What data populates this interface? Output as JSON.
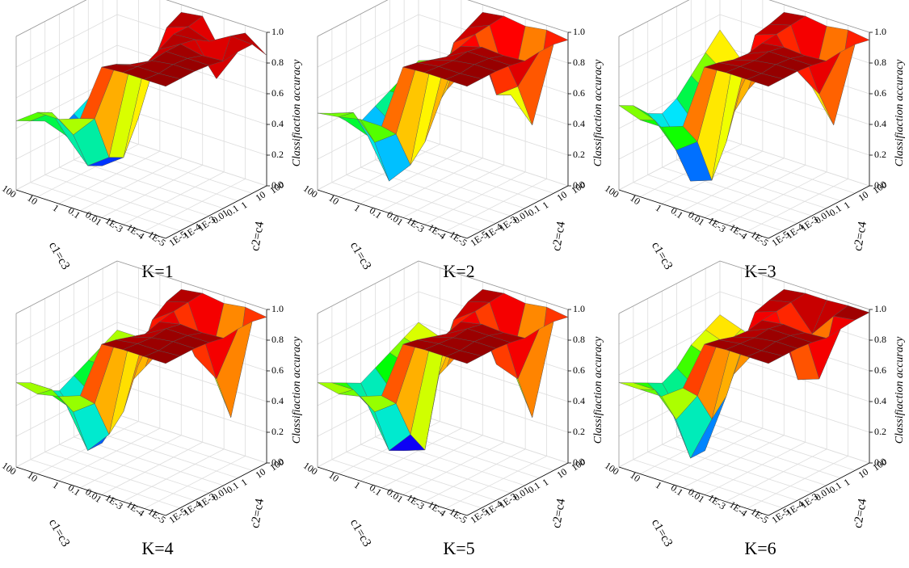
{
  "chart_data": [
    {
      "type": "surface",
      "title": "K=1",
      "xlabel": "c1=c3",
      "ylabel": "c2=c4",
      "zlabel": "Classifiaction accuracy",
      "x": [
        "100",
        "10",
        "1",
        "0.1",
        "0.01",
        "1E-3",
        "1E-4",
        "1E-5"
      ],
      "y": [
        "100",
        "10",
        "1",
        "0.1",
        "0.01",
        "1E-3",
        "1E-4",
        "1E-5"
      ],
      "zlim": [
        0,
        1
      ],
      "zticks": [
        {
          "value": 0,
          "label": "0.0"
        },
        0.2,
        0.4,
        0.6,
        0.8,
        {
          "value": 1,
          "label": "1.0"
        }
      ],
      "colormap": [
        "#6a0dad",
        "#0000ff",
        "#00e5ff",
        "#00ff00",
        "#ffff00",
        "#ff8000",
        "#ff0000",
        "#8b0000"
      ],
      "values": [
        [
          0.45,
          0.4,
          0.35,
          0.3,
          0.25,
          0.35,
          0.4,
          0.45
        ],
        [
          0.5,
          0.45,
          0.35,
          0.2,
          0.15,
          0.3,
          0.5,
          0.55
        ],
        [
          0.55,
          0.5,
          0.4,
          0.25,
          0.1,
          0.15,
          0.4,
          0.55
        ],
        [
          0.95,
          0.9,
          0.7,
          0.4,
          0.2,
          0.25,
          0.55,
          0.6
        ],
        [
          0.97,
          0.95,
          0.95,
          0.9,
          0.85,
          0.9,
          0.95,
          0.98
        ],
        [
          0.75,
          0.9,
          0.96,
          0.98,
          0.98,
          0.97,
          0.98,
          0.99
        ],
        [
          0.95,
          0.98,
          0.75,
          0.95,
          0.98,
          0.99,
          0.98,
          0.99
        ],
        [
          0.85,
          0.97,
          0.97,
          0.96,
          0.98,
          0.99,
          0.99,
          0.99
        ]
      ]
    },
    {
      "type": "surface",
      "title": "K=2",
      "xlabel": "c1=c3",
      "ylabel": "c2=c4",
      "zlabel": "Classifiaction accuracy",
      "x": [
        "100",
        "10",
        "1",
        "0.1",
        "0.01",
        "1E-3",
        "1E-4",
        "1E-5"
      ],
      "y": [
        "100",
        "10",
        "1",
        "0.1",
        "0.01",
        "1E-3",
        "1E-4",
        "1E-5"
      ],
      "zlim": [
        0,
        1
      ],
      "zticks": [
        {
          "value": 0,
          "label": "0.0"
        },
        0.2,
        0.4,
        0.6,
        0.8,
        {
          "value": 1,
          "label": "1.0"
        }
      ],
      "colormap": [
        "#6a0dad",
        "#0000ff",
        "#00e5ff",
        "#00ff00",
        "#ffff00",
        "#ff8000",
        "#ff0000",
        "#8b0000"
      ],
      "values": [
        [
          0.5,
          0.45,
          0.4,
          0.35,
          0.3,
          0.35,
          0.45,
          0.5
        ],
        [
          0.55,
          0.5,
          0.4,
          0.25,
          0.15,
          0.3,
          0.5,
          0.52
        ],
        [
          0.5,
          0.45,
          0.35,
          0.2,
          0.1,
          0.05,
          0.35,
          0.55
        ],
        [
          0.95,
          0.9,
          0.85,
          0.5,
          0.3,
          0.2,
          0.45,
          0.55
        ],
        [
          0.97,
          0.96,
          0.95,
          0.92,
          0.9,
          0.93,
          0.96,
          0.98
        ],
        [
          0.95,
          0.55,
          0.6,
          0.96,
          0.98,
          0.97,
          0.98,
          0.99
        ],
        [
          0.97,
          0.4,
          0.7,
          0.95,
          0.98,
          0.99,
          0.98,
          0.99
        ],
        [
          0.95,
          0.97,
          0.97,
          0.96,
          0.98,
          0.99,
          0.99,
          0.99
        ]
      ]
    },
    {
      "type": "surface",
      "title": "K=3",
      "xlabel": "c1=c3",
      "ylabel": "c2=c4",
      "zlabel": "Classifiaction accuracy",
      "x": [
        "100",
        "10",
        "1",
        "0.1",
        "0.01",
        "1E-3",
        "1E-4",
        "1E-5"
      ],
      "y": [
        "100",
        "10",
        "1",
        "0.1",
        "0.01",
        "1E-3",
        "1E-4",
        "1E-5"
      ],
      "zlim": [
        0,
        1
      ],
      "zticks": [
        {
          "value": 0,
          "label": "0.0"
        },
        0.2,
        0.4,
        0.6,
        0.8,
        {
          "value": 1,
          "label": "1.0"
        }
      ],
      "colormap": [
        "#6a0dad",
        "#0000ff",
        "#00e5ff",
        "#00ff00",
        "#ffff00",
        "#ff8000",
        "#ff0000",
        "#8b0000"
      ],
      "values": [
        [
          0.7,
          0.6,
          0.5,
          0.4,
          0.35,
          0.4,
          0.5,
          0.55
        ],
        [
          0.55,
          0.5,
          0.4,
          0.25,
          0.15,
          0.3,
          0.45,
          0.5
        ],
        [
          0.5,
          0.45,
          0.35,
          0.15,
          0.05,
          0.05,
          0.3,
          0.5
        ],
        [
          0.95,
          0.92,
          0.9,
          0.6,
          0.3,
          0.1,
          0.4,
          0.55
        ],
        [
          0.97,
          0.96,
          0.95,
          0.94,
          0.92,
          0.93,
          0.96,
          0.98
        ],
        [
          0.95,
          0.6,
          0.75,
          0.96,
          0.98,
          0.97,
          0.98,
          0.99
        ],
        [
          0.97,
          0.4,
          0.65,
          0.95,
          0.98,
          0.99,
          0.98,
          0.99
        ],
        [
          0.95,
          0.97,
          0.97,
          0.96,
          0.98,
          0.99,
          0.99,
          0.99
        ]
      ]
    },
    {
      "type": "surface",
      "title": "K=4",
      "xlabel": "c1=c3",
      "ylabel": "c2=c4",
      "zlabel": "Classifiaction accuracy",
      "x": [
        "100",
        "10",
        "1",
        "0.1",
        "0.01",
        "1E-3",
        "1E-4",
        "1E-5"
      ],
      "y": [
        "100",
        "10",
        "1",
        "0.1",
        "0.01",
        "1E-3",
        "1E-4",
        "1E-5"
      ],
      "zlim": [
        0,
        1
      ],
      "zticks": [
        {
          "value": 0,
          "label": "0.0"
        },
        0.2,
        0.4,
        0.6,
        0.8,
        {
          "value": 1,
          "label": "1.0"
        }
      ],
      "colormap": [
        "#6a0dad",
        "#0000ff",
        "#00e5ff",
        "#00ff00",
        "#ffff00",
        "#ff8000",
        "#ff0000",
        "#8b0000"
      ],
      "values": [
        [
          0.55,
          0.5,
          0.45,
          0.4,
          0.35,
          0.4,
          0.5,
          0.55
        ],
        [
          0.55,
          0.5,
          0.45,
          0.3,
          0.2,
          0.35,
          0.5,
          0.52
        ],
        [
          0.5,
          0.45,
          0.4,
          0.25,
          0.1,
          0.1,
          0.4,
          0.55
        ],
        [
          0.95,
          0.92,
          0.85,
          0.6,
          0.35,
          0.25,
          0.5,
          0.6
        ],
        [
          0.97,
          0.96,
          0.95,
          0.93,
          0.9,
          0.93,
          0.96,
          0.98
        ],
        [
          0.95,
          0.6,
          0.7,
          0.96,
          0.98,
          0.97,
          0.98,
          0.99
        ],
        [
          0.97,
          0.3,
          0.6,
          0.95,
          0.98,
          0.99,
          0.98,
          0.99
        ],
        [
          0.95,
          0.97,
          0.97,
          0.96,
          0.98,
          0.99,
          0.99,
          0.99
        ]
      ]
    },
    {
      "type": "surface",
      "title": "K=5",
      "xlabel": "c1=c3",
      "ylabel": "c2=c4",
      "zlabel": "Classifiaction accuracy",
      "x": [
        "100",
        "10",
        "1",
        "0.1",
        "0.01",
        "1E-3",
        "1E-4",
        "1E-5"
      ],
      "y": [
        "100",
        "10",
        "1",
        "0.1",
        "0.01",
        "1E-3",
        "1E-4",
        "1E-5"
      ],
      "zlim": [
        0,
        1
      ],
      "zticks": [
        {
          "value": 0,
          "label": "0.0"
        },
        0.2,
        0.4,
        0.6,
        0.8,
        {
          "value": 1,
          "label": "1.0"
        }
      ],
      "colormap": [
        "#6a0dad",
        "#0000ff",
        "#00e5ff",
        "#00ff00",
        "#ffff00",
        "#ff8000",
        "#ff0000",
        "#8b0000"
      ],
      "values": [
        [
          0.6,
          0.55,
          0.5,
          0.45,
          0.4,
          0.45,
          0.5,
          0.55
        ],
        [
          0.55,
          0.5,
          0.45,
          0.3,
          0.15,
          0.35,
          0.5,
          0.52
        ],
        [
          0.5,
          0.45,
          0.4,
          0.2,
          0.05,
          0.1,
          0.4,
          0.55
        ],
        [
          0.95,
          0.92,
          0.85,
          0.55,
          0.1,
          0.25,
          0.5,
          0.6
        ],
        [
          0.97,
          0.96,
          0.95,
          0.93,
          0.9,
          0.93,
          0.96,
          0.98
        ],
        [
          0.95,
          0.6,
          0.65,
          0.96,
          0.98,
          0.97,
          0.98,
          0.99
        ],
        [
          0.97,
          0.3,
          0.6,
          0.95,
          0.98,
          0.99,
          0.98,
          0.99
        ],
        [
          0.95,
          0.97,
          0.97,
          0.96,
          0.98,
          0.99,
          0.99,
          0.99
        ]
      ]
    },
    {
      "type": "surface",
      "title": "K=6",
      "xlabel": "c1=c3",
      "ylabel": "c2=c4",
      "zlabel": "Classifiaction accuracy",
      "x": [
        "100",
        "10",
        "1",
        "0.1",
        "0.01",
        "1E-3",
        "1E-4",
        "1E-5"
      ],
      "y": [
        "100",
        "10",
        "1",
        "0.1",
        "0.01",
        "1E-3",
        "1E-4",
        "1E-5"
      ],
      "zlim": [
        0,
        1
      ],
      "zticks": [
        {
          "value": 0,
          "label": "0.0"
        },
        0.2,
        0.4,
        0.6,
        0.8,
        {
          "value": 1,
          "label": "1.0"
        }
      ],
      "colormap": [
        "#6a0dad",
        "#0000ff",
        "#00e5ff",
        "#00ff00",
        "#ffff00",
        "#ff8000",
        "#ff0000",
        "#8b0000"
      ],
      "values": [
        [
          0.65,
          0.6,
          0.55,
          0.45,
          0.4,
          0.45,
          0.5,
          0.55
        ],
        [
          0.6,
          0.55,
          0.5,
          0.35,
          0.2,
          0.35,
          0.5,
          0.55
        ],
        [
          0.55,
          0.5,
          0.45,
          0.25,
          0.05,
          0.05,
          0.35,
          0.55
        ],
        [
          0.95,
          0.93,
          0.9,
          0.7,
          0.45,
          0.35,
          0.55,
          0.65
        ],
        [
          0.97,
          0.96,
          0.95,
          0.94,
          0.92,
          0.93,
          0.96,
          0.98
        ],
        [
          0.97,
          0.8,
          0.55,
          0.96,
          0.98,
          0.97,
          0.98,
          0.99
        ],
        [
          0.98,
          0.96,
          0.6,
          0.95,
          0.98,
          0.99,
          0.98,
          0.99
        ],
        [
          0.98,
          0.98,
          0.97,
          0.96,
          0.98,
          0.99,
          0.99,
          0.99
        ]
      ]
    }
  ]
}
